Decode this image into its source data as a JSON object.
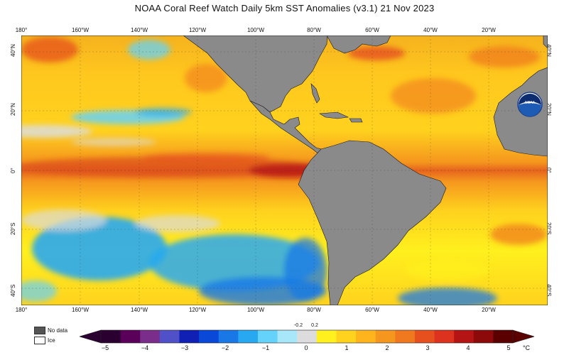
{
  "title": "NOAA Coral Reef Watch Daily 5km SST Anomalies  (v3.1)   21 Nov 2023",
  "longitude_ticks": [
    "180°",
    "160°W",
    "140°W",
    "120°W",
    "100°W",
    "80°W",
    "60°W",
    "40°W",
    "20°W"
  ],
  "latitude_ticks": [
    "40°N",
    "20°N",
    "0°",
    "20°S",
    "40°S"
  ],
  "logo_text": "NOAA",
  "legend": {
    "no_data": "No data",
    "ice": "Ice",
    "no_data_color": "#555555",
    "ice_color": "#ffffff"
  },
  "colorbar": {
    "unit": "°C",
    "labels": [
      "−5",
      "−4",
      "−3",
      "−2",
      "−1",
      "0",
      "1",
      "2",
      "3",
      "4",
      "5"
    ],
    "small_labels": [
      "-0.2",
      "0.2"
    ],
    "colors": [
      "#2a0030",
      "#5a005a",
      "#7a2d8a",
      "#5050c8",
      "#1020b4",
      "#0a48d8",
      "#1a78e6",
      "#28a8f0",
      "#64d2fa",
      "#a8e6fa",
      "#dcdcdc",
      "#fff01e",
      "#ffd21e",
      "#ffb41e",
      "#f5961e",
      "#f0781e",
      "#e6501e",
      "#dc321e",
      "#b41414",
      "#8c0a0a",
      "#5a0000"
    ]
  },
  "land_color": "#8a8a8a"
}
